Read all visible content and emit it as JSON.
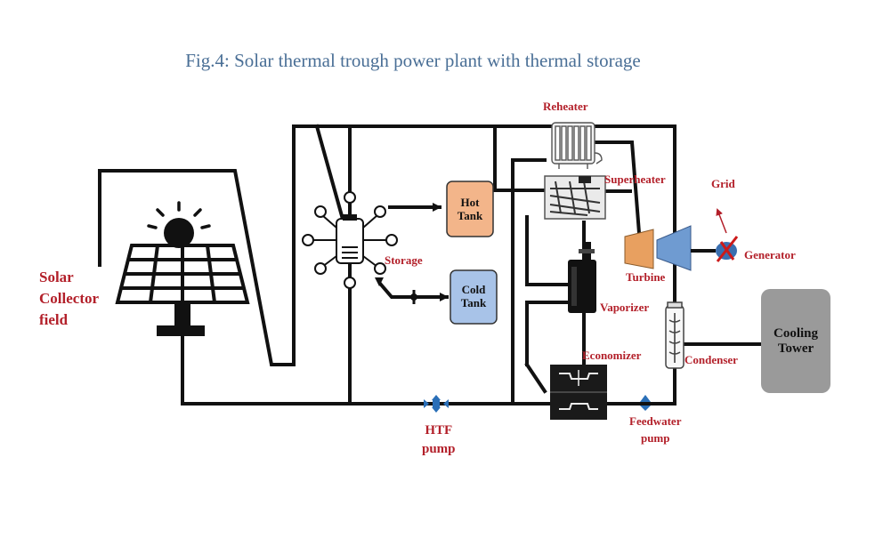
{
  "caption": "Fig.4: Solar thermal trough power plant with thermal storage",
  "labels": {
    "solar_field": "Solar\nCollector\nfield",
    "storage": "Storage",
    "hot_tank": "Hot\nTank",
    "cold_tank": "Cold\nTank",
    "reheater": "Reheater",
    "superheater": "Superheater",
    "vaporizer": "Vaporizer",
    "economizer": "Economizer",
    "turbine": "Turbine",
    "grid": "Grid",
    "generator": "Generator",
    "condenser": "Condenser",
    "cooling_tower": "Cooling\nTower",
    "htf_pump": "HTF\npump",
    "feedwater_pump": "Feedwater\npump"
  },
  "colors": {
    "caption": "#4a6f96",
    "label": "#b3202a",
    "hot_tank": "#f3b58a",
    "cold_tank": "#a8c3e8",
    "cooling_tower": "#9a9a9a",
    "turbine_in": "#e8a060",
    "turbine_out": "#6f9bd1",
    "pump": "#2a6fb8"
  },
  "icons": [
    "sun-icon",
    "solar-panel-icon",
    "storage-hub-icon",
    "reheater-icon",
    "superheater-icon",
    "vaporizer-icon",
    "economizer-icon",
    "turbine-icon",
    "generator-icon",
    "condenser-icon",
    "pump-icon"
  ]
}
